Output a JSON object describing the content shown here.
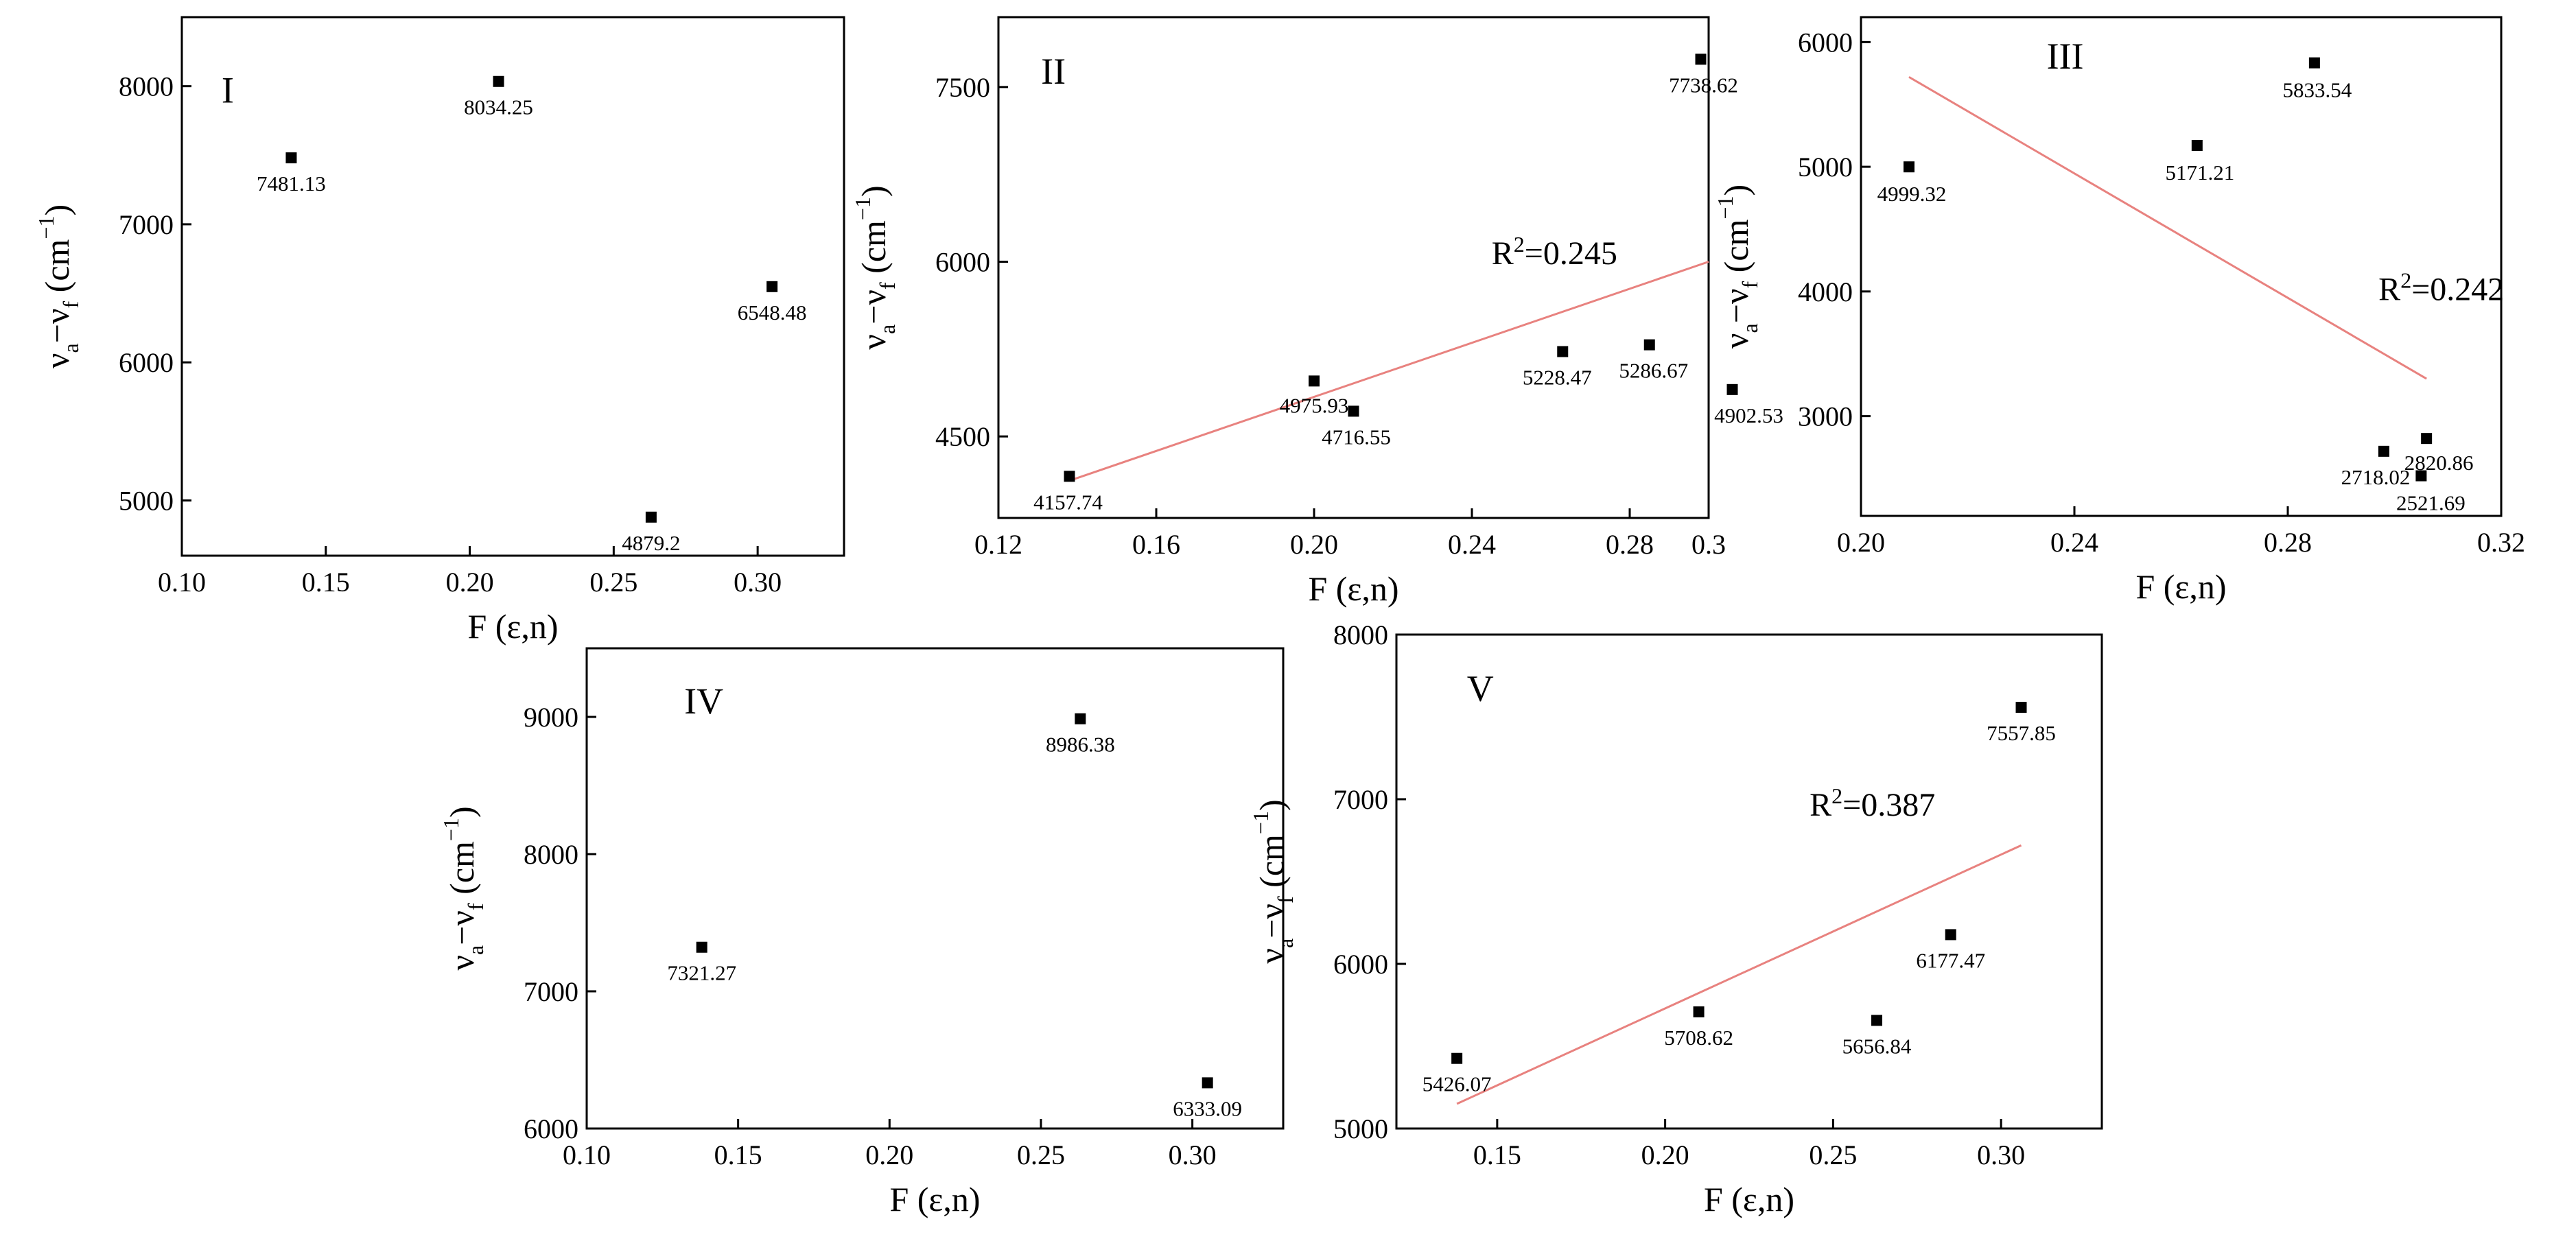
{
  "figure": {
    "description_text": ""
  },
  "chart_data": [
    {
      "id": "I",
      "type": "scatter",
      "panel_label": "I",
      "xlabel": "F (ε,n)",
      "ylabel": "ν_a−ν_f (cm^−1)",
      "xlim": [
        0.1,
        0.33
      ],
      "ylim": [
        4600,
        8500
      ],
      "xticks": [
        0.1,
        0.15,
        0.2,
        0.25,
        0.3
      ],
      "xtick_labels": [
        "0.10",
        "0.15",
        "0.20",
        "0.25",
        "0.30"
      ],
      "yticks": [
        5000,
        6000,
        7000,
        8000
      ],
      "ytick_labels": [
        "5000",
        "6000",
        "7000",
        "8000"
      ],
      "points": [
        {
          "x": 0.138,
          "y": 7481.13,
          "label": "7481.13"
        },
        {
          "x": 0.21,
          "y": 8034.25,
          "label": "8034.25"
        },
        {
          "x": 0.305,
          "y": 6548.48,
          "label": "6548.48"
        },
        {
          "x": 0.263,
          "y": 4879.2,
          "label": "4879.2"
        }
      ],
      "fit": null
    },
    {
      "id": "II",
      "type": "scatter",
      "panel_label": "II",
      "xlabel": "F (ε,n)",
      "ylabel": "ν_a−ν_f (cm^−1)",
      "xlim": [
        0.12,
        0.3
      ],
      "ylim": [
        3800,
        8100
      ],
      "xticks": [
        0.12,
        0.16,
        0.2,
        0.24,
        0.28,
        0.3
      ],
      "xtick_labels": [
        "0.12",
        "0.16",
        "0.20",
        "0.24",
        "0.28",
        "0.3"
      ],
      "yticks": [
        4500,
        6000,
        7500
      ],
      "ytick_labels": [
        "4500",
        "6000",
        "7500"
      ],
      "points": [
        {
          "x": 0.138,
          "y": 4157.74,
          "label": "4157.74"
        },
        {
          "x": 0.2,
          "y": 4975.93,
          "label": "4975.93"
        },
        {
          "x": 0.21,
          "y": 4716.55,
          "label": "4716.55"
        },
        {
          "x": 0.263,
          "y": 5228.47,
          "label": "5228.47"
        },
        {
          "x": 0.285,
          "y": 5286.67,
          "label": "5286.67"
        },
        {
          "x": 0.306,
          "y": 4902.53,
          "label": "4902.53"
        },
        {
          "x": 0.298,
          "y": 7738.62,
          "label": "7738.62"
        }
      ],
      "fit": {
        "x": [
          0.138,
          0.3
        ],
        "y": [
          4120,
          6000
        ],
        "r2_label": "R²=0.245",
        "r2_x": 0.245,
        "r2_y": 5980
      }
    },
    {
      "id": "III",
      "type": "scatter",
      "panel_label": "III",
      "xlabel": "F (ε,n)",
      "ylabel": "ν_a−ν_f (cm^−1)",
      "xlim": [
        0.2,
        0.32
      ],
      "ylim": [
        2200,
        6200
      ],
      "xticks": [
        0.2,
        0.24,
        0.28,
        0.32
      ],
      "xtick_labels": [
        "0.20",
        "0.24",
        "0.28",
        "0.32"
      ],
      "yticks": [
        3000,
        4000,
        5000,
        6000
      ],
      "ytick_labels": [
        "3000",
        "4000",
        "5000",
        "6000"
      ],
      "points": [
        {
          "x": 0.209,
          "y": 4999.32,
          "label": "4999.32"
        },
        {
          "x": 0.263,
          "y": 5171.21,
          "label": "5171.21"
        },
        {
          "x": 0.285,
          "y": 5833.54,
          "label": "5833.54"
        },
        {
          "x": 0.298,
          "y": 2718.02,
          "label": "2718.02"
        },
        {
          "x": 0.306,
          "y": 2820.86,
          "label": "2820.86"
        },
        {
          "x": 0.305,
          "y": 2521.69,
          "label": "2521.69"
        }
      ],
      "fit": {
        "x": [
          0.209,
          0.306
        ],
        "y": [
          5720,
          3300
        ],
        "r2_label": "R²=0.242",
        "r2_x": 0.297,
        "r2_y": 3930
      }
    },
    {
      "id": "IV",
      "type": "scatter",
      "panel_label": "IV",
      "xlabel": "F (ε,n)",
      "ylabel": "ν_a−ν_f (cm^−1)",
      "xlim": [
        0.1,
        0.33
      ],
      "ylim": [
        6000,
        9500
      ],
      "xticks": [
        0.1,
        0.15,
        0.2,
        0.25,
        0.3
      ],
      "xtick_labels": [
        "0.10",
        "0.15",
        "0.20",
        "0.25",
        "0.30"
      ],
      "yticks": [
        6000,
        7000,
        8000,
        9000
      ],
      "ytick_labels": [
        "6000",
        "7000",
        "8000",
        "9000"
      ],
      "points": [
        {
          "x": 0.263,
          "y": 8986.38,
          "label": "8986.38"
        },
        {
          "x": 0.138,
          "y": 7321.27,
          "label": "7321.27"
        },
        {
          "x": 0.305,
          "y": 6333.09,
          "label": "6333.09"
        }
      ],
      "fit": null
    },
    {
      "id": "V",
      "type": "scatter",
      "panel_label": "V",
      "xlabel": "F (ε,n)",
      "ylabel": "ν_a−ν_f (cm^−1)",
      "xlim": [
        0.12,
        0.33
      ],
      "ylim": [
        5000,
        8000
      ],
      "xticks": [
        0.15,
        0.2,
        0.25,
        0.3
      ],
      "xtick_labels": [
        "0.15",
        "0.20",
        "0.25",
        "0.30"
      ],
      "yticks": [
        5000,
        6000,
        7000,
        8000
      ],
      "ytick_labels": [
        "5000",
        "6000",
        "7000",
        "8000"
      ],
      "points": [
        {
          "x": 0.138,
          "y": 5426.07,
          "label": "5426.07"
        },
        {
          "x": 0.21,
          "y": 5708.62,
          "label": "5708.62"
        },
        {
          "x": 0.263,
          "y": 5656.84,
          "label": "5656.84"
        },
        {
          "x": 0.285,
          "y": 6177.47,
          "label": "6177.47"
        },
        {
          "x": 0.306,
          "y": 7557.85,
          "label": "7557.85"
        }
      ],
      "fit": {
        "x": [
          0.138,
          0.306
        ],
        "y": [
          5150,
          6720
        ],
        "r2_label": "R²=0.387",
        "r2_x": 0.243,
        "r2_y": 6900
      }
    }
  ]
}
